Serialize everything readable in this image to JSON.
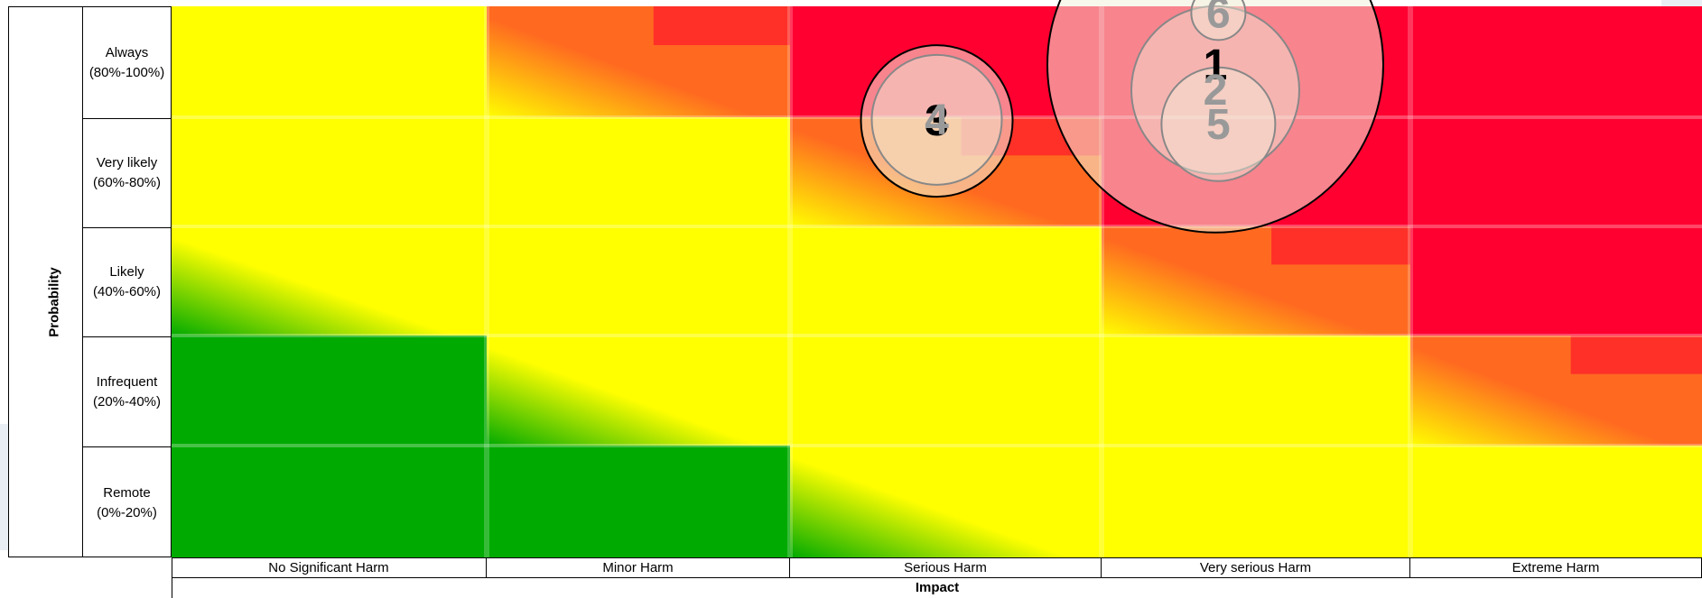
{
  "chart_data": {
    "type": "bubble-risk-matrix",
    "ylabel": "Probability",
    "xlabel": "Impact",
    "rows": [
      [
        "Always",
        "(80%-100%)"
      ],
      [
        "Very likely",
        "(60%-80%)"
      ],
      [
        "Likely",
        "(40%-60%)"
      ],
      [
        "Infrequent",
        "(20%-40%)"
      ],
      [
        "Remote",
        "(0%-20%)"
      ]
    ],
    "columns": [
      "No Significant Harm",
      "Minor Harm",
      "Serious Harm",
      "Very serious Harm",
      "Extreme Harm"
    ],
    "cell_colors": [
      [
        "yellow",
        "yellow-orange",
        "red",
        "red",
        "red"
      ],
      [
        "yellow",
        "yellow",
        "yellow-orange",
        "red",
        "red"
      ],
      [
        "green-yellow",
        "yellow",
        "yellow",
        "yellow-orange",
        "red"
      ],
      [
        "green",
        "green-yellow",
        "yellow",
        "yellow",
        "yellow-orange"
      ],
      [
        "green",
        "green",
        "green-yellow",
        "yellow",
        "yellow"
      ]
    ],
    "palette": {
      "red": "#ff0030",
      "orange": "#ff6a20",
      "yellow": "#ffff00",
      "green": "#00aa00",
      "bubble_fill": "#f3f0dc",
      "label_dark": "#000000",
      "label_light": "#999999"
    },
    "bubbles": [
      {
        "label": "1",
        "impact": 3.41,
        "probability": 4.47,
        "size": 3.1,
        "style": "dark"
      },
      {
        "label": "2",
        "impact": 3.41,
        "probability": 4.24,
        "size": 1.55,
        "style": "faded"
      },
      {
        "label": "3",
        "impact": 2.5,
        "probability": 3.96,
        "size": 1.4,
        "style": "dark"
      },
      {
        "label": "4",
        "impact": 2.5,
        "probability": 3.97,
        "size": 1.2,
        "style": "faded"
      },
      {
        "label": "5",
        "impact": 3.42,
        "probability": 3.93,
        "size": 1.05,
        "style": "faded"
      },
      {
        "label": "6",
        "impact": 3.42,
        "probability": 4.94,
        "size": 0.5,
        "style": "faded"
      }
    ]
  }
}
